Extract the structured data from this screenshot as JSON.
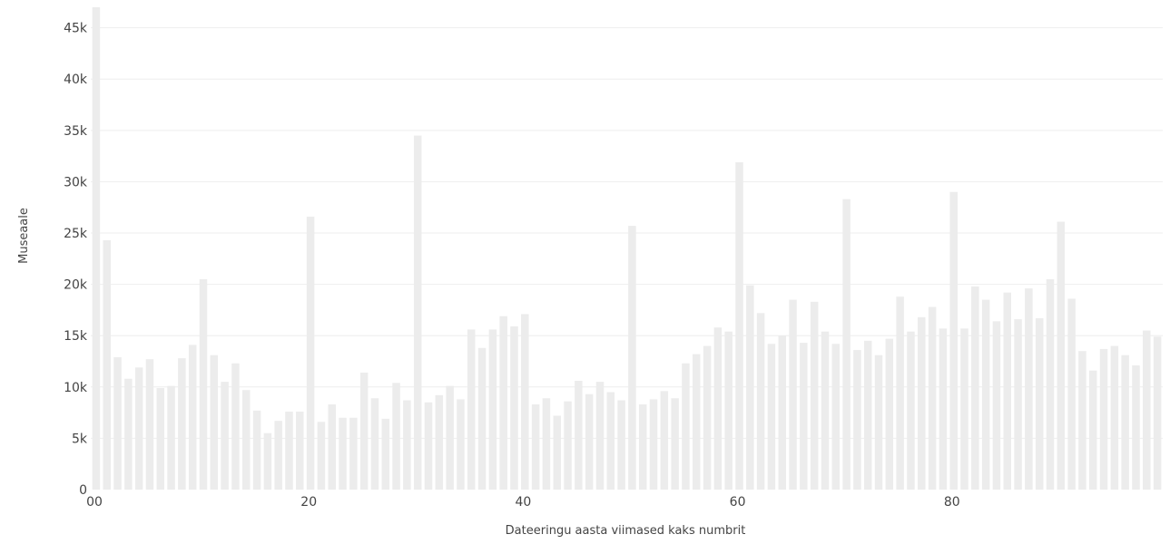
{
  "chart_data": {
    "type": "bar",
    "xlabel": "Dateeringu aasta viimased kaks numbrit",
    "ylabel": "Museaale",
    "xlim": [
      0,
      99
    ],
    "ylim": [
      0,
      47000
    ],
    "x_ticks": [
      0,
      20,
      40,
      60,
      80
    ],
    "x_tick_labels": [
      "00",
      "20",
      "40",
      "60",
      "80"
    ],
    "y_ticks": [
      0,
      5000,
      10000,
      15000,
      20000,
      25000,
      30000,
      35000,
      40000,
      45000
    ],
    "y_tick_labels": [
      "0",
      "5k",
      "10k",
      "15k",
      "20k",
      "25k",
      "30k",
      "35k",
      "40k",
      "45k"
    ],
    "grid": true,
    "bar_color": "#ececec",
    "categories": [
      0,
      1,
      2,
      3,
      4,
      5,
      6,
      7,
      8,
      9,
      10,
      11,
      12,
      13,
      14,
      15,
      16,
      17,
      18,
      19,
      20,
      21,
      22,
      23,
      24,
      25,
      26,
      27,
      28,
      29,
      30,
      31,
      32,
      33,
      34,
      35,
      36,
      37,
      38,
      39,
      40,
      41,
      42,
      43,
      44,
      45,
      46,
      47,
      48,
      49,
      50,
      51,
      52,
      53,
      54,
      55,
      56,
      57,
      58,
      59,
      60,
      61,
      62,
      63,
      64,
      65,
      66,
      67,
      68,
      69,
      70,
      71,
      72,
      73,
      74,
      75,
      76,
      77,
      78,
      79,
      80,
      81,
      82,
      83,
      84,
      85,
      86,
      87,
      88,
      89,
      90,
      91,
      92,
      93,
      94,
      95,
      96,
      97,
      98,
      99
    ],
    "values": [
      47000,
      24300,
      12900,
      10800,
      11900,
      12700,
      9900,
      10100,
      12800,
      14100,
      20500,
      13100,
      10500,
      12300,
      9700,
      7700,
      5500,
      6700,
      7600,
      7600,
      26600,
      6600,
      8300,
      7000,
      7000,
      11400,
      8900,
      6900,
      10400,
      8700,
      34500,
      8500,
      9200,
      10100,
      8800,
      15600,
      13800,
      15600,
      16900,
      15900,
      17100,
      8300,
      8900,
      7200,
      8600,
      10600,
      9300,
      10500,
      9500,
      8700,
      25700,
      8300,
      8800,
      9600,
      8900,
      12300,
      13200,
      14000,
      15800,
      15400,
      31900,
      19900,
      17200,
      14200,
      15000,
      18500,
      14300,
      18300,
      15400,
      14200,
      28300,
      13600,
      14500,
      13100,
      14700,
      18800,
      15400,
      16800,
      17800,
      15700,
      29000,
      15700,
      19800,
      18500,
      16400,
      19200,
      16600,
      19600,
      16700,
      20500,
      26100,
      18600,
      13500,
      11600,
      13700,
      14000,
      13100,
      12100,
      15500,
      14900
    ]
  }
}
